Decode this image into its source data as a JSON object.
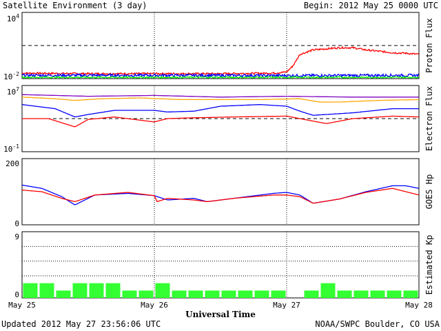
{
  "header": {
    "title": "Satellite Environment (3 day)",
    "begin": "Begin:  2012 May 25 0000 UTC"
  },
  "footer": {
    "updated": "Updated 2012 May 27 23:56:06 UTC",
    "credit": "NOAA/SWPC Boulder, CO USA"
  },
  "x_axis": {
    "title": "Universal Time",
    "tick_labels": [
      "May 25",
      "May 26",
      "May 27",
      "May 28"
    ]
  },
  "colors": {
    "red": "#ff0000",
    "blue": "#0000ff",
    "green": "#00ee00",
    "orange": "#ffa500",
    "purple": "#7f00bf",
    "kp_bar": "#33ff33"
  },
  "chart_data": [
    {
      "type": "line",
      "panel": "proton",
      "ylabel": "Proton Flux",
      "yscale": "log",
      "ylim_exp": [
        -2,
        4
      ],
      "ytick_base": "10",
      "ytick_exps": [
        "4",
        "-2"
      ],
      "threshold_exp": 1,
      "xlim_days": [
        0,
        3
      ],
      "series": [
        {
          "color": "red",
          "x": [
            0,
            0.5,
            1.0,
            1.5,
            1.9,
            2.0,
            2.05,
            2.1,
            2.2,
            2.4,
            2.5,
            2.6,
            2.8,
            2.9,
            3.0
          ],
          "y_exp": [
            -1.5,
            -1.55,
            -1.55,
            -1.55,
            -1.5,
            -1.4,
            -0.8,
            0.2,
            0.6,
            0.8,
            0.8,
            0.6,
            0.35,
            0.3,
            0.2
          ],
          "noise": 0.08
        },
        {
          "color": "blue",
          "x": [
            0,
            1.0,
            2.0,
            3.0
          ],
          "y_exp": [
            -1.7,
            -1.7,
            -1.72,
            -1.7
          ],
          "noise": 0.12
        },
        {
          "color": "green",
          "x": [
            0,
            1.0,
            2.0,
            3.0
          ],
          "y_exp": [
            -1.88,
            -1.88,
            -1.88,
            -1.88
          ],
          "noise": 0.06
        }
      ]
    },
    {
      "type": "line",
      "panel": "electron",
      "ylabel": "Electron Flux",
      "yscale": "log",
      "ylim_exp": [
        -1,
        7
      ],
      "ytick_base": "10",
      "ytick_exps": [
        "7",
        "-1"
      ],
      "threshold_exp": 3,
      "xlim_days": [
        0,
        3
      ],
      "series": [
        {
          "color": "purple",
          "x": [
            0,
            0.5,
            1.0,
            1.5,
            2.0,
            2.5,
            3.0
          ],
          "y_exp": [
            5.9,
            5.7,
            5.8,
            5.6,
            5.7,
            5.6,
            5.6
          ]
        },
        {
          "color": "orange",
          "x": [
            0,
            0.25,
            0.4,
            0.6,
            0.9,
            1.2,
            1.5,
            1.8,
            2.1,
            2.25,
            2.4,
            2.7,
            3.0
          ],
          "y_exp": [
            5.6,
            5.4,
            5.2,
            5.4,
            5.5,
            5.3,
            5.3,
            5.3,
            5.4,
            5.0,
            5.0,
            5.2,
            5.3
          ]
        },
        {
          "color": "blue",
          "x": [
            0,
            0.25,
            0.4,
            0.5,
            0.7,
            1.0,
            1.1,
            1.3,
            1.5,
            1.8,
            2.0,
            2.1,
            2.2,
            2.5,
            2.8,
            3.0
          ],
          "y_exp": [
            4.7,
            4.2,
            3.2,
            3.5,
            4.0,
            4.0,
            3.8,
            3.9,
            4.5,
            4.7,
            4.5,
            3.9,
            3.4,
            3.7,
            4.2,
            4.2
          ]
        },
        {
          "color": "red",
          "x": [
            0,
            0.2,
            0.4,
            0.5,
            0.7,
            1.0,
            1.1,
            1.3,
            1.6,
            2.0,
            2.1,
            2.3,
            2.5,
            2.8,
            3.0
          ],
          "y_exp": [
            3.0,
            3.0,
            2.0,
            2.9,
            3.2,
            2.6,
            3.0,
            3.1,
            3.2,
            3.3,
            3.0,
            2.4,
            3.0,
            3.3,
            3.2
          ]
        }
      ]
    },
    {
      "type": "line",
      "panel": "goes_hp",
      "ylabel": "GOES Hp",
      "ylim": [
        0,
        200
      ],
      "yticks": [
        "200",
        "0"
      ],
      "xlim_days": [
        0,
        3
      ],
      "series": [
        {
          "color": "blue",
          "x": [
            0,
            0.15,
            0.3,
            0.4,
            0.55,
            0.8,
            1.0,
            1.1,
            1.3,
            1.4,
            1.6,
            1.9,
            2.0,
            2.1,
            2.2,
            2.4,
            2.6,
            2.8,
            2.9,
            3.0
          ],
          "y": [
            120,
            110,
            85,
            60,
            90,
            95,
            88,
            75,
            80,
            70,
            80,
            95,
            98,
            90,
            65,
            78,
            100,
            118,
            118,
            110
          ]
        },
        {
          "color": "red",
          "x": [
            0,
            0.15,
            0.3,
            0.4,
            0.55,
            0.8,
            1.0,
            1.02,
            1.1,
            1.3,
            1.4,
            1.6,
            1.9,
            2.0,
            2.1,
            2.2,
            2.4,
            2.6,
            2.8,
            2.9,
            3.0
          ],
          "y": [
            105,
            100,
            80,
            70,
            90,
            98,
            88,
            70,
            80,
            75,
            70,
            80,
            90,
            90,
            85,
            65,
            78,
            98,
            110,
            100,
            90
          ]
        }
      ]
    },
    {
      "type": "bar",
      "panel": "kp",
      "ylabel": "Estimated Kp",
      "ylim": [
        0,
        9
      ],
      "yticks": [
        "9",
        "0"
      ],
      "bin_hours": 3,
      "values": [
        2,
        2,
        1,
        2,
        2,
        2,
        1,
        1,
        2,
        1,
        1,
        1,
        1,
        1,
        1,
        1,
        0,
        1,
        2,
        1,
        1,
        1,
        1,
        1
      ]
    }
  ]
}
